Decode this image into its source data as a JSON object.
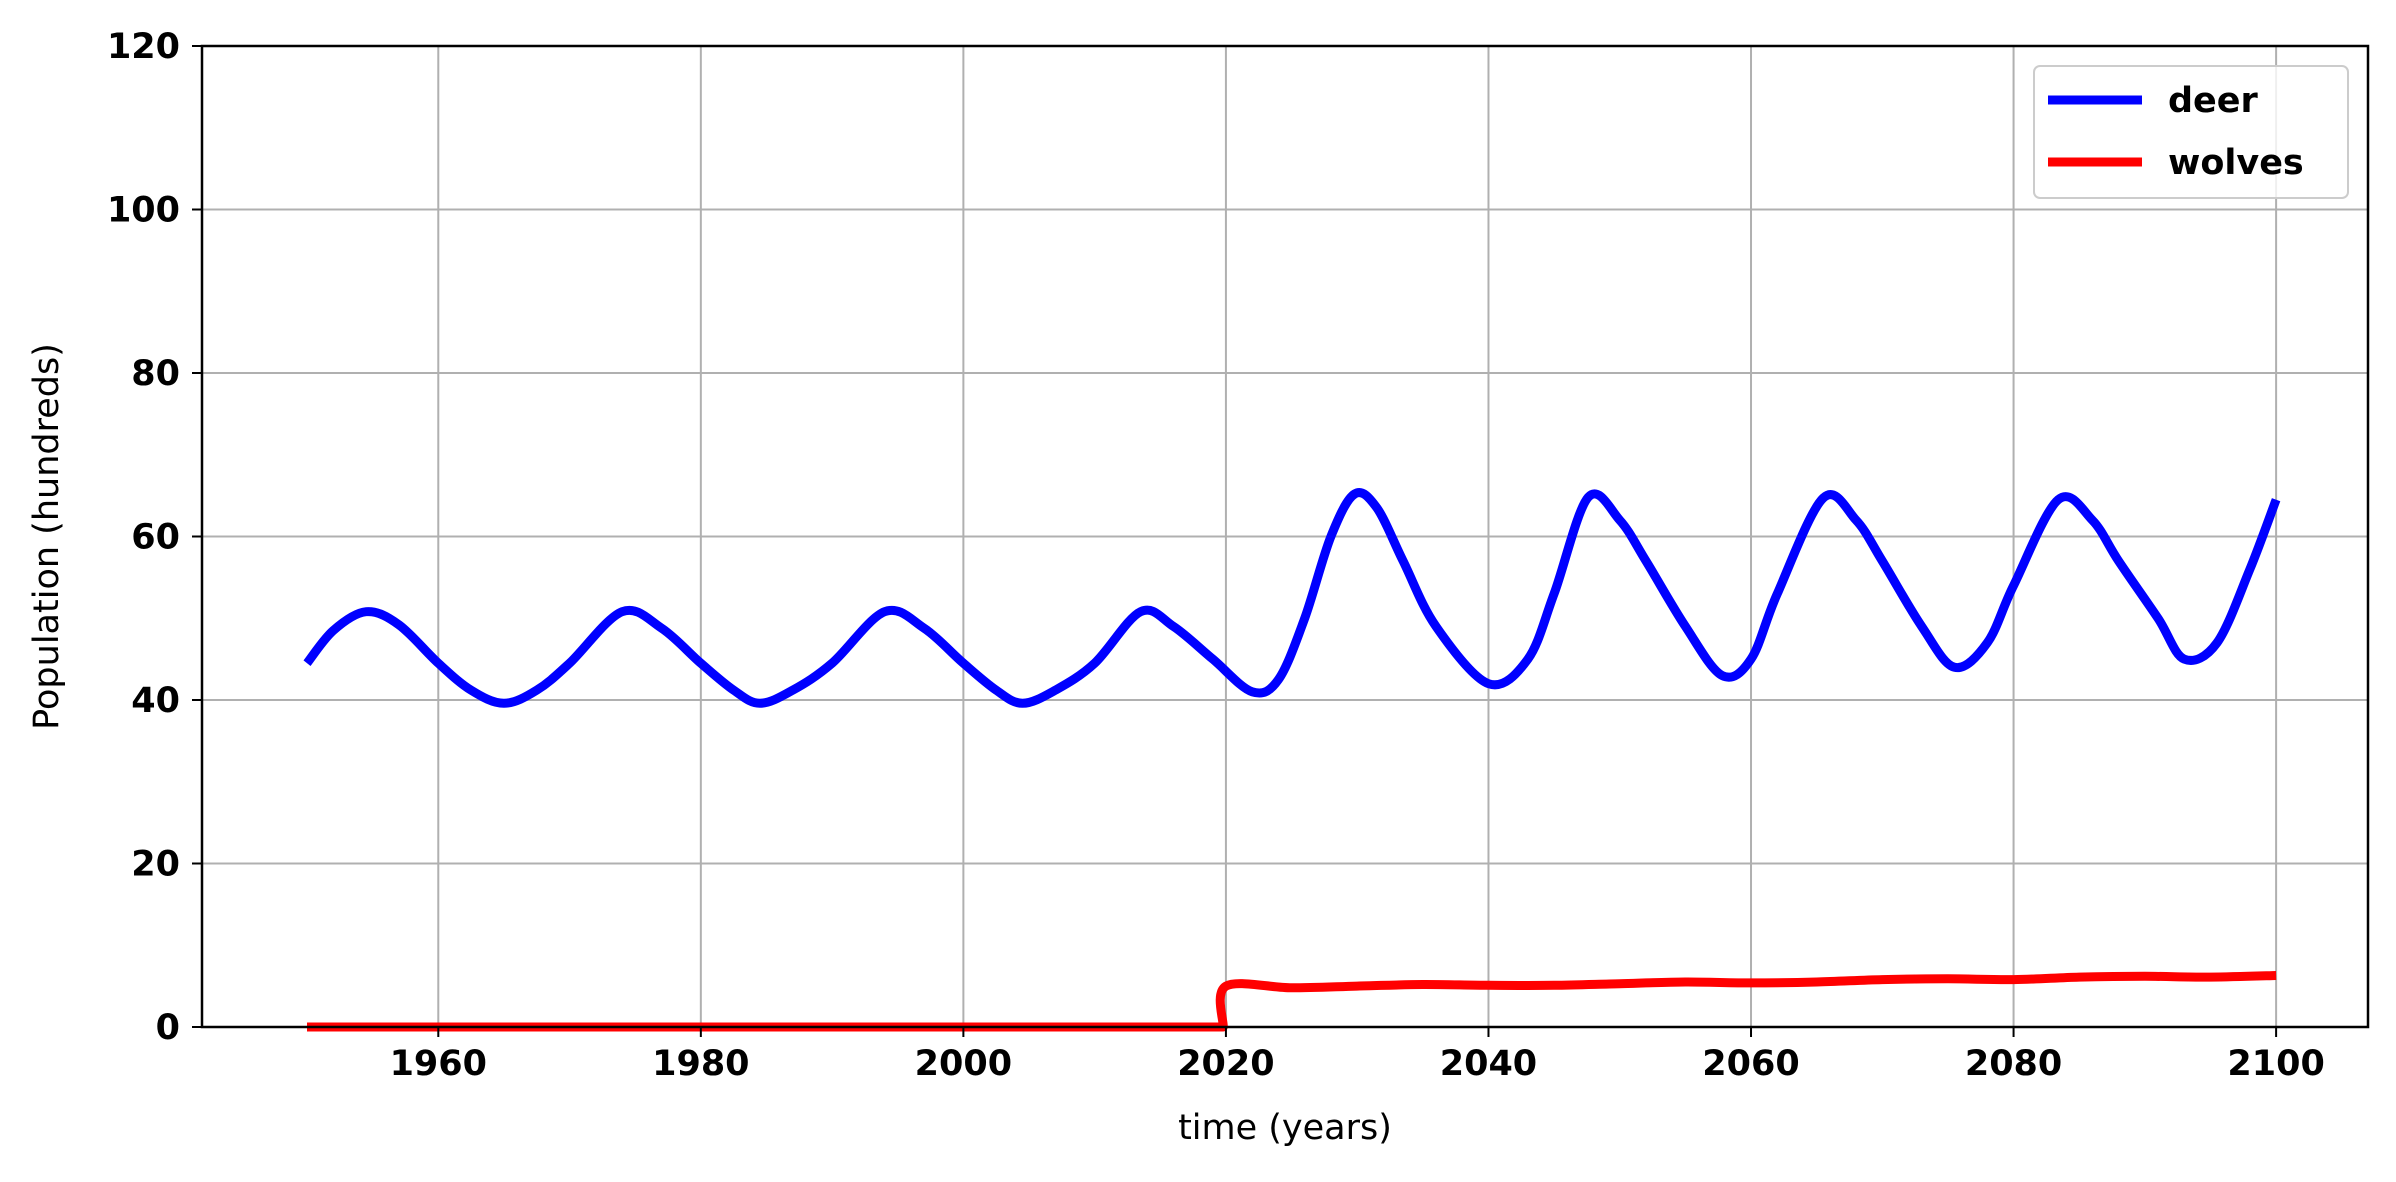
{
  "chart_data": {
    "type": "line",
    "title": "",
    "xlabel": "time (years)",
    "ylabel": "Population (hundreds)",
    "xlim": [
      1942,
      2107
    ],
    "ylim": [
      0,
      120
    ],
    "xticks": [
      1960,
      1980,
      2000,
      2020,
      2040,
      2060,
      2080,
      2100
    ],
    "yticks": [
      0,
      20,
      40,
      60,
      80,
      100,
      120
    ],
    "grid": true,
    "legend_position": "top-right",
    "series": [
      {
        "name": "deer",
        "color": "#0000ff",
        "x": [
          1950,
          1952,
          1954.5,
          1957,
          1960,
          1962.5,
          1965,
          1967.5,
          1970,
          1974,
          1977,
          1980,
          1982.5,
          1984.5,
          1987,
          1990,
          1994,
          1997,
          2000,
          2002.5,
          2004.5,
          2007,
          2010,
          2013.5,
          2016,
          2019,
          2022,
          2024,
          2026,
          2028,
          2029.8,
          2031.5,
          2033.5,
          2036,
          2040,
          2043,
          2045,
          2047.6,
          2050,
          2052,
          2055,
          2057.8,
          2060,
          2062,
          2065.5,
          2068,
          2070,
          2073,
          2075.5,
          2078,
          2080,
          2083.4,
          2086,
          2088,
          2091,
          2093,
          2095.5,
          2098,
          2100
        ],
        "y": [
          44.5,
          48.5,
          50.8,
          49.2,
          44.5,
          41.2,
          39.6,
          41.2,
          44.5,
          50.8,
          48.8,
          44.5,
          41.2,
          39.6,
          41.2,
          44.5,
          50.8,
          48.8,
          44.5,
          41.2,
          39.6,
          41.2,
          44.5,
          50.8,
          49.0,
          45.0,
          41.0,
          42.5,
          50.0,
          60.0,
          65.2,
          63.5,
          57.0,
          49.0,
          42.0,
          45.0,
          53.0,
          64.8,
          62.0,
          57.0,
          49.0,
          43.0,
          45.0,
          53.0,
          64.7,
          62.0,
          57.0,
          49.0,
          44.0,
          47.0,
          54.0,
          64.5,
          62.0,
          57.0,
          50.0,
          45.0,
          47.0,
          56.0,
          64.5
        ]
      },
      {
        "name": "wolves",
        "color": "#ff0000",
        "x": [
          1950,
          2019.8,
          2019.8,
          2020,
          2025,
          2030,
          2035,
          2040,
          2045,
          2050,
          2055,
          2060,
          2065,
          2070,
          2075,
          2080,
          2085,
          2090,
          2095,
          2100
        ],
        "y": [
          0,
          0,
          0,
          5.0,
          4.8,
          5.0,
          5.2,
          5.1,
          5.1,
          5.3,
          5.5,
          5.4,
          5.5,
          5.8,
          5.9,
          5.8,
          6.1,
          6.2,
          6.1,
          6.3
        ]
      }
    ]
  }
}
